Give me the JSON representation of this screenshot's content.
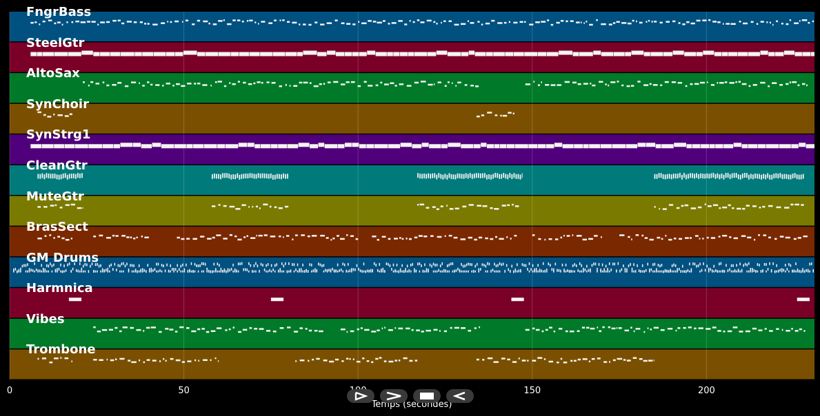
{
  "x_axis": {
    "label": "Temps (secondes)",
    "min": 0,
    "max": 231,
    "ticks": [
      0,
      50,
      100,
      150,
      200
    ]
  },
  "tracks": [
    {
      "name": "FngrBass",
      "color": "#005080",
      "style": "thin"
    },
    {
      "name": "SteelGtr",
      "color": "#7a0028",
      "style": "thick"
    },
    {
      "name": "AltoSax",
      "color": "#007a28",
      "style": "thin"
    },
    {
      "name": "SynChoir",
      "color": "#7a5000",
      "style": "thin"
    },
    {
      "name": "SynStrg1",
      "color": "#50007a",
      "style": "thick"
    },
    {
      "name": "CleanGtr",
      "color": "#007a7a",
      "style": "vert"
    },
    {
      "name": "MuteGtr",
      "color": "#7a7a00",
      "style": "thin"
    },
    {
      "name": "BrasSect",
      "color": "#7a2800",
      "style": "thin"
    },
    {
      "name": "GM Drums",
      "color": "#005080",
      "style": "drums"
    },
    {
      "name": "Harmnica",
      "color": "#7a0028",
      "style": "block"
    },
    {
      "name": "Vibes",
      "color": "#007a28",
      "style": "thin"
    },
    {
      "name": "Trombone",
      "color": "#7a5000",
      "style": "thin"
    }
  ],
  "controls": [
    {
      "name": "play-icon"
    },
    {
      "name": "forward-icon"
    },
    {
      "name": "stop-icon"
    },
    {
      "name": "rewind-icon"
    }
  ]
}
